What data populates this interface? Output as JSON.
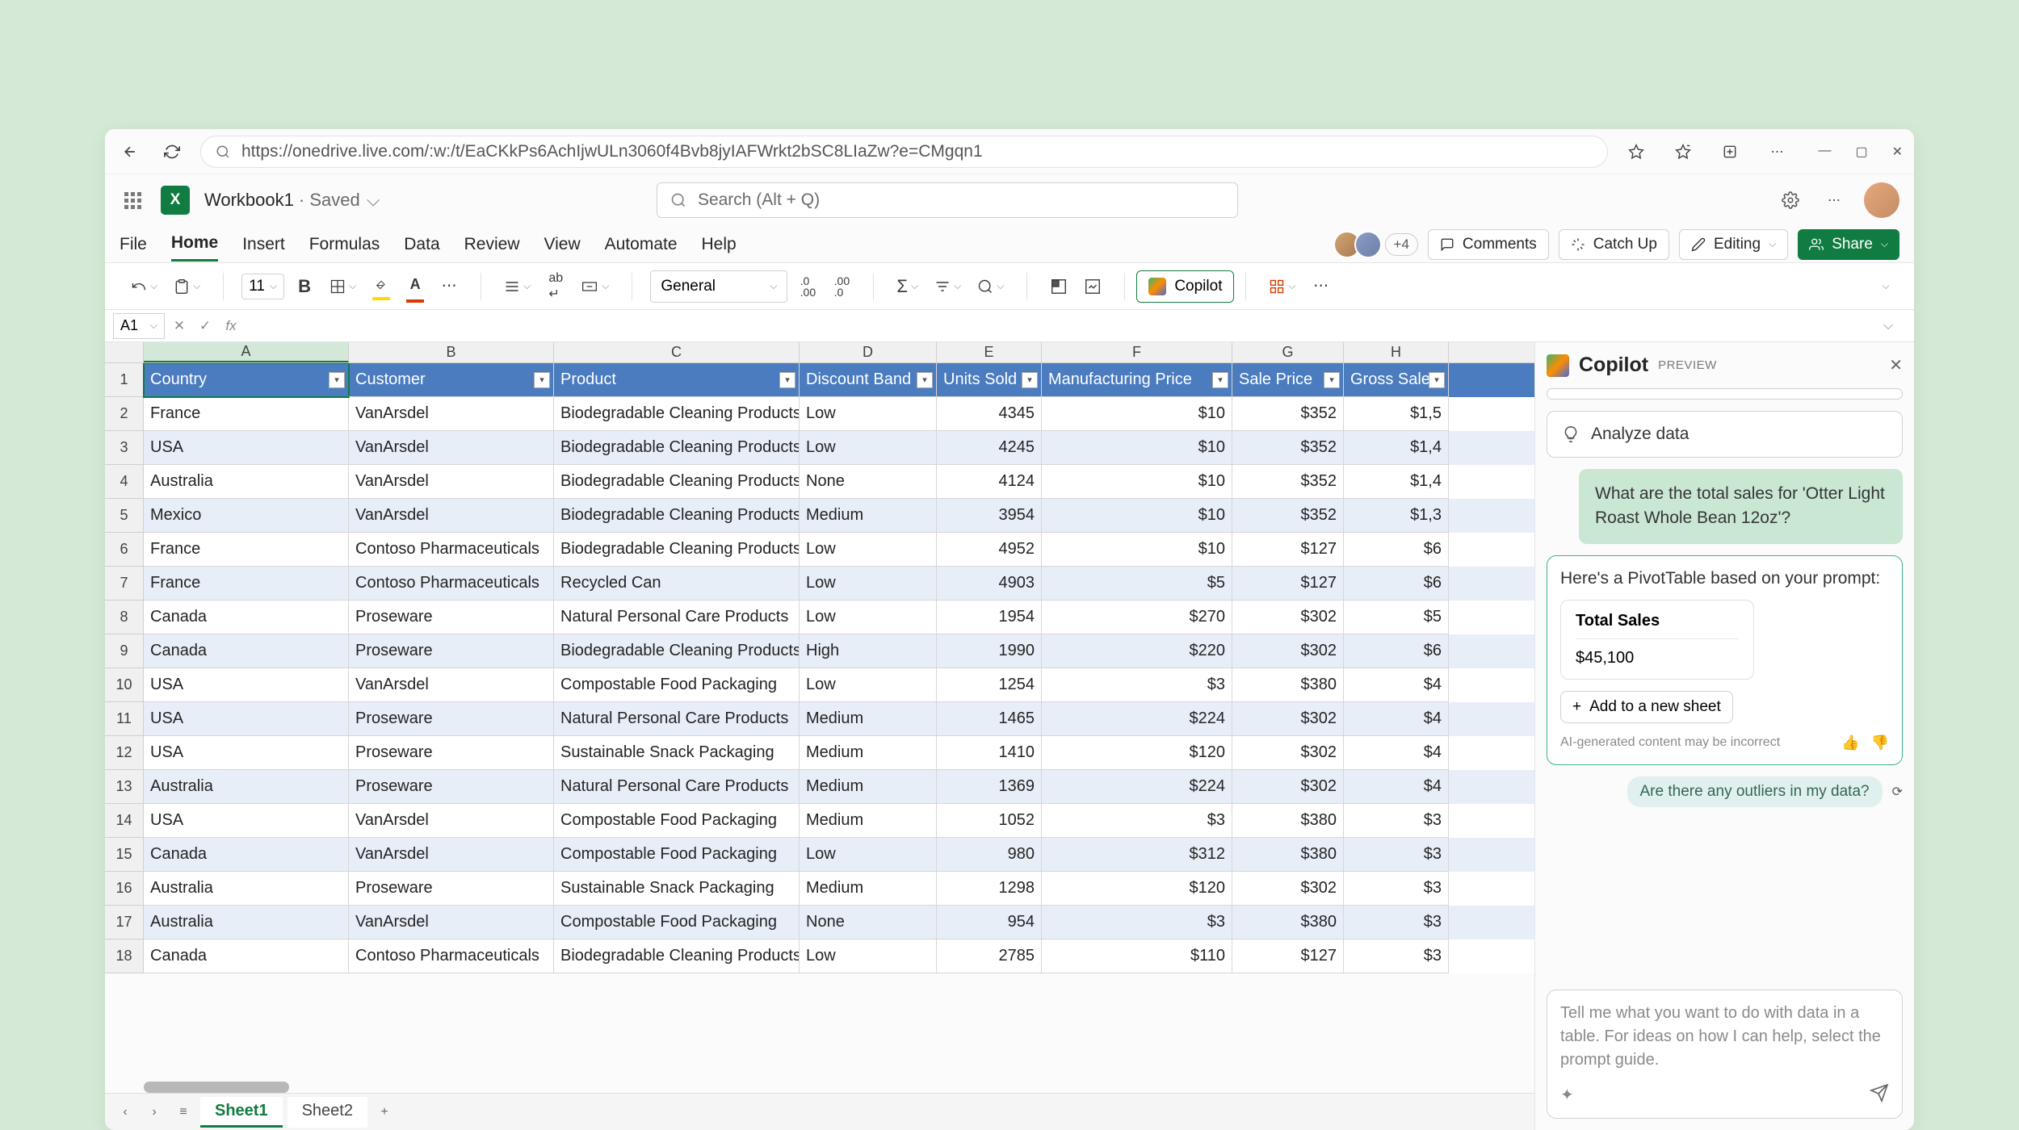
{
  "browser": {
    "url": "https://onedrive.live.com/:w:/t/EaCKkPs6AchIjwULn3060f4Bvb8jyIAFWrkt2bSC8LIaZw?e=CMgqn1"
  },
  "title": {
    "workbook": "Workbook1",
    "status": "Saved",
    "search_placeholder": "Search (Alt + Q)"
  },
  "menu": [
    "File",
    "Home",
    "Insert",
    "Formulas",
    "Data",
    "Review",
    "View",
    "Automate",
    "Help"
  ],
  "menu_active": "Home",
  "actions": {
    "presence_count": "+4",
    "comments": "Comments",
    "catchup": "Catch Up",
    "editing": "Editing",
    "share": "Share",
    "copilot": "Copilot"
  },
  "ribbon": {
    "font_size": "11",
    "number_format": "General"
  },
  "formula": {
    "name_box": "A1",
    "fx": ""
  },
  "columns": [
    "A",
    "B",
    "C",
    "D",
    "E",
    "F",
    "G",
    "H"
  ],
  "header_row": [
    "Country",
    "Customer",
    "Product",
    "Discount Band",
    "Units Sold",
    "Manufacturing Price",
    "Sale Price",
    "Gross Sale"
  ],
  "rows": [
    [
      "France",
      "VanArsdel",
      "Biodegradable Cleaning Products",
      "Low",
      "4345",
      "$10",
      "$352",
      "$1,5"
    ],
    [
      "USA",
      "VanArsdel",
      "Biodegradable Cleaning Products",
      "Low",
      "4245",
      "$10",
      "$352",
      "$1,4"
    ],
    [
      "Australia",
      "VanArsdel",
      "Biodegradable Cleaning Products",
      "None",
      "4124",
      "$10",
      "$352",
      "$1,4"
    ],
    [
      "Mexico",
      "VanArsdel",
      "Biodegradable Cleaning Products",
      "Medium",
      "3954",
      "$10",
      "$352",
      "$1,3"
    ],
    [
      "France",
      "Contoso Pharmaceuticals",
      "Biodegradable Cleaning Products",
      "Low",
      "4952",
      "$10",
      "$127",
      "$6"
    ],
    [
      "France",
      "Contoso Pharmaceuticals",
      "Recycled Can",
      "Low",
      "4903",
      "$5",
      "$127",
      "$6"
    ],
    [
      "Canada",
      "Proseware",
      "Natural Personal Care Products",
      "Low",
      "1954",
      "$270",
      "$302",
      "$5"
    ],
    [
      "Canada",
      "Proseware",
      "Biodegradable Cleaning Products",
      "High",
      "1990",
      "$220",
      "$302",
      "$6"
    ],
    [
      "USA",
      "VanArsdel",
      "Compostable Food Packaging",
      "Low",
      "1254",
      "$3",
      "$380",
      "$4"
    ],
    [
      "USA",
      "Proseware",
      "Natural Personal Care Products",
      "Medium",
      "1465",
      "$224",
      "$302",
      "$4"
    ],
    [
      "USA",
      "Proseware",
      "Sustainable Snack Packaging",
      "Medium",
      "1410",
      "$120",
      "$302",
      "$4"
    ],
    [
      "Australia",
      "Proseware",
      "Natural Personal Care Products",
      "Medium",
      "1369",
      "$224",
      "$302",
      "$4"
    ],
    [
      "USA",
      "VanArsdel",
      "Compostable Food Packaging",
      "Medium",
      "1052",
      "$3",
      "$380",
      "$3"
    ],
    [
      "Canada",
      "VanArsdel",
      "Compostable Food Packaging",
      "Low",
      "980",
      "$312",
      "$380",
      "$3"
    ],
    [
      "Australia",
      "Proseware",
      "Sustainable Snack Packaging",
      "Medium",
      "1298",
      "$120",
      "$302",
      "$3"
    ],
    [
      "Australia",
      "VanArsdel",
      "Compostable Food Packaging",
      "None",
      "954",
      "$3",
      "$380",
      "$3"
    ],
    [
      "Canada",
      "Contoso Pharmaceuticals",
      "Biodegradable Cleaning Products",
      "Low",
      "2785",
      "$110",
      "$127",
      "$3"
    ]
  ],
  "sheets": [
    "Sheet1",
    "Sheet2"
  ],
  "sheet_active": "Sheet1",
  "copilot": {
    "title": "Copilot",
    "badge": "PREVIEW",
    "analyze": "Analyze data",
    "user_msg": "What are the total sales for 'Otter Light Roast Whole Bean 12oz'?",
    "response_text": "Here's a PivotTable based on your prompt:",
    "pivot_title": "Total Sales",
    "pivot_value": "$45,100",
    "add_sheet": "Add to a new sheet",
    "disclaimer": "AI-generated content may be incorrect",
    "suggestion": "Are there any outliers in my data?",
    "input_placeholder": "Tell me what you want to do with data in a table. For ideas on how I can help, select the prompt guide."
  },
  "style": {
    "brand_green": "#107c41",
    "header_blue": "#4a7cbf",
    "row_alt": "#e8eef8",
    "page_bg": "#d5ead6",
    "copilot_user_bg": "#c9e7d3"
  }
}
